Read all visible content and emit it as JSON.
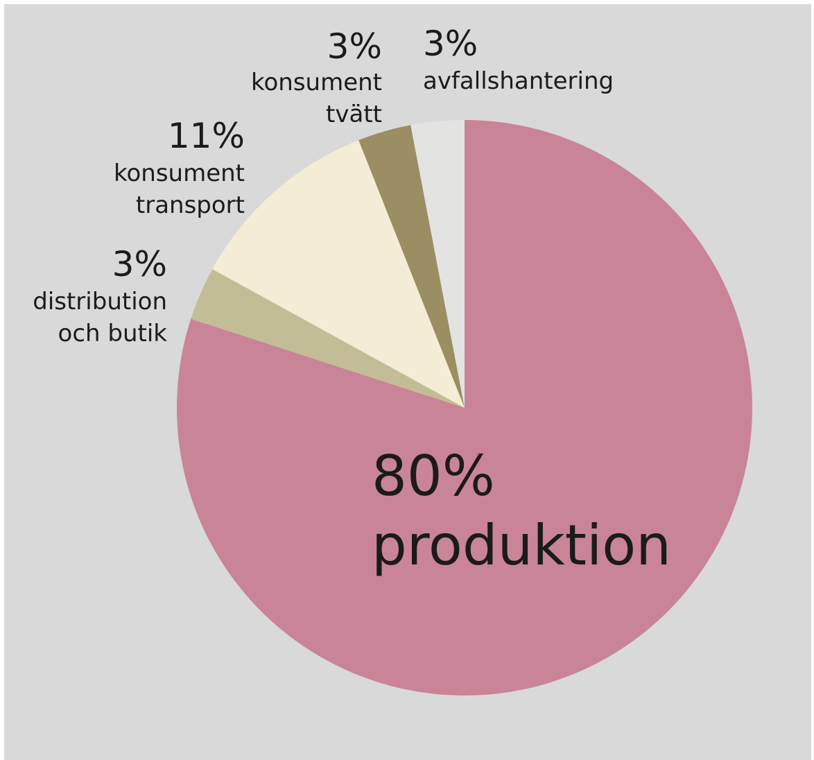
{
  "chart_data": {
    "type": "pie",
    "title": "",
    "start_angle_deg": 0,
    "direction": "clockwise",
    "slices": [
      {
        "percent_label": "80%",
        "name_lines": [
          "produktion"
        ],
        "value": 80,
        "color": "#c98498"
      },
      {
        "percent_label": "3%",
        "name_lines": [
          "distribution",
          "och butik"
        ],
        "value": 3,
        "color": "#c3bd97"
      },
      {
        "percent_label": "11%",
        "name_lines": [
          "konsument",
          "transport"
        ],
        "value": 11,
        "color": "#f4edd5"
      },
      {
        "percent_label": "3%",
        "name_lines": [
          "konsument",
          "tvätt"
        ],
        "value": 3,
        "color": "#9b8e62"
      },
      {
        "percent_label": "3%",
        "name_lines": [
          "avfallshantering"
        ],
        "value": 3,
        "color": "#e3e3e1"
      }
    ]
  },
  "colors": {
    "panel_background": "#d9d9d9",
    "page_background": "#ffffff",
    "text": "#1b1b1b"
  }
}
